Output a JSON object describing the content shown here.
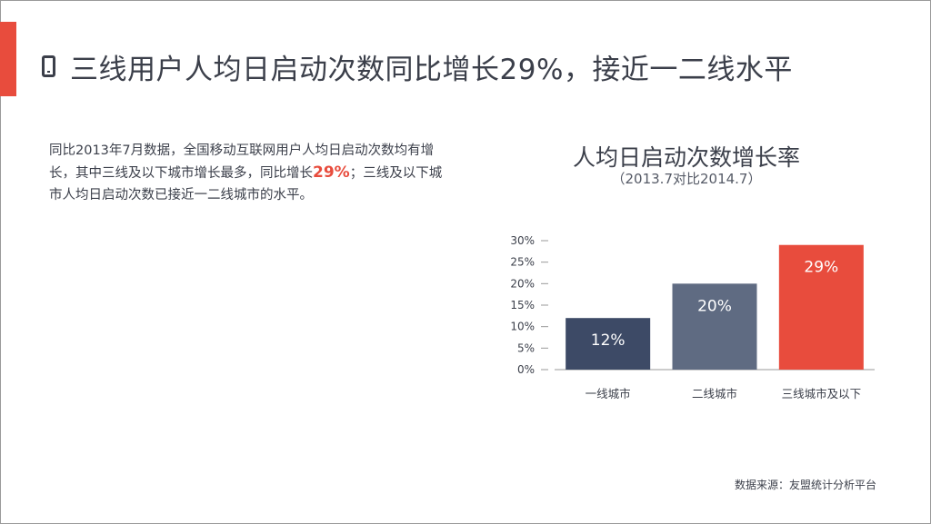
{
  "slide": {
    "title": "三线用户人均日启动次数同比增长29%，接近一二线水平",
    "desc_before": "同比2013年7月数据，全国移动互联网用户人均日启动次数均有增长，其中三线及以下城市增长最多，同比增长",
    "desc_highlight": "29%",
    "desc_after": "；三线及以下城市人均日启动次数已接近一二线城市的水平。",
    "source": "数据来源：友盟统计分析平台"
  },
  "chart_data": {
    "type": "bar",
    "title": "人均日启动次数增长率",
    "subtitle": "（2013.7对比2014.7）",
    "categories": [
      "一线城市",
      "二线城市",
      "三线城市及以下"
    ],
    "values": [
      12,
      20,
      29
    ],
    "data_labels": [
      "12%",
      "20%",
      "29%"
    ],
    "colors": [
      "#3d4a66",
      "#5f6b82",
      "#e84c3d"
    ],
    "ylim": [
      0,
      30
    ],
    "yticks": [
      "0%",
      "5%",
      "10%",
      "15%",
      "20%",
      "25%",
      "30%"
    ],
    "grid": false,
    "legend": "none"
  }
}
